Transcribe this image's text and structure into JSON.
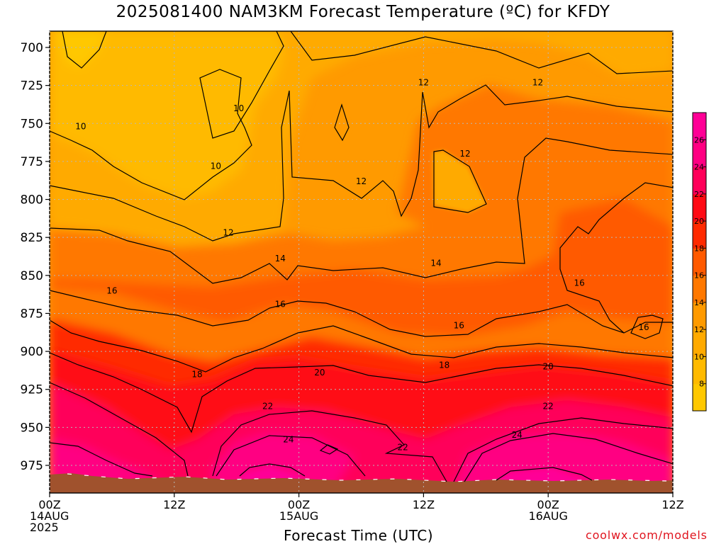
{
  "title": "2025081400 NAM3KM Forecast Temperature (ºC) for KFDY",
  "xlabel": "Forecast Time (UTC)",
  "credit": "coolwx.com/models",
  "chart_data": {
    "type": "heatmap",
    "title": "2025081400 NAM3KM Forecast Temperature (ºC) for KFDY",
    "xlabel": "Forecast Time (UTC)",
    "ylabel": "",
    "x_hours": [
      0,
      12,
      24,
      36,
      48,
      60
    ],
    "x_ticks": [
      {
        "hour": 0,
        "lines": [
          "00Z",
          "14AUG",
          "2025"
        ]
      },
      {
        "hour": 12,
        "lines": [
          "12Z"
        ]
      },
      {
        "hour": 24,
        "lines": [
          "00Z",
          "15AUG"
        ]
      },
      {
        "hour": 36,
        "lines": [
          "12Z"
        ]
      },
      {
        "hour": 48,
        "lines": [
          "00Z",
          "16AUG"
        ]
      },
      {
        "hour": 60,
        "lines": [
          "12Z"
        ]
      }
    ],
    "y_ticks": [
      700,
      725,
      750,
      775,
      800,
      825,
      850,
      875,
      900,
      925,
      950,
      975
    ],
    "ylim": [
      990,
      690
    ],
    "xlim": [
      0,
      60
    ],
    "grid": true,
    "colorbar": {
      "ticks": [
        8,
        10,
        12,
        14,
        16,
        18,
        20,
        22,
        24,
        26
      ],
      "min": 6,
      "max": 28,
      "step": 2
    },
    "ground_color": "#a0522d",
    "contour_labels": [
      {
        "value": "10",
        "hour": 3.0,
        "p": 752
      },
      {
        "value": "10",
        "hour": 18.2,
        "p": 740
      },
      {
        "value": "10",
        "hour": 16.0,
        "p": 778
      },
      {
        "value": "12",
        "hour": 17.2,
        "p": 822
      },
      {
        "value": "12",
        "hour": 30.0,
        "p": 788
      },
      {
        "value": "12",
        "hour": 36.0,
        "p": 723
      },
      {
        "value": "12",
        "hour": 40.0,
        "p": 770
      },
      {
        "value": "12",
        "hour": 47.0,
        "p": 723
      },
      {
        "value": "14",
        "hour": 22.2,
        "p": 839
      },
      {
        "value": "14",
        "hour": 37.2,
        "p": 842
      },
      {
        "value": "16",
        "hour": 6.0,
        "p": 860
      },
      {
        "value": "16",
        "hour": 22.2,
        "p": 869
      },
      {
        "value": "16",
        "hour": 39.4,
        "p": 883
      },
      {
        "value": "16",
        "hour": 51.0,
        "p": 855
      },
      {
        "value": "16",
        "hour": 57.2,
        "p": 884
      },
      {
        "value": "18",
        "hour": 14.2,
        "p": 915
      },
      {
        "value": "18",
        "hour": 38.0,
        "p": 909
      },
      {
        "value": "20",
        "hour": 26.0,
        "p": 914
      },
      {
        "value": "20",
        "hour": 48.0,
        "p": 910
      },
      {
        "value": "22",
        "hour": 21.0,
        "p": 936
      },
      {
        "value": "22",
        "hour": 34.0,
        "p": 963
      },
      {
        "value": "22",
        "hour": 48.0,
        "p": 936
      },
      {
        "value": "24",
        "hour": 23.0,
        "p": 958
      },
      {
        "value": "24",
        "hour": 45.0,
        "p": 955
      }
    ]
  }
}
